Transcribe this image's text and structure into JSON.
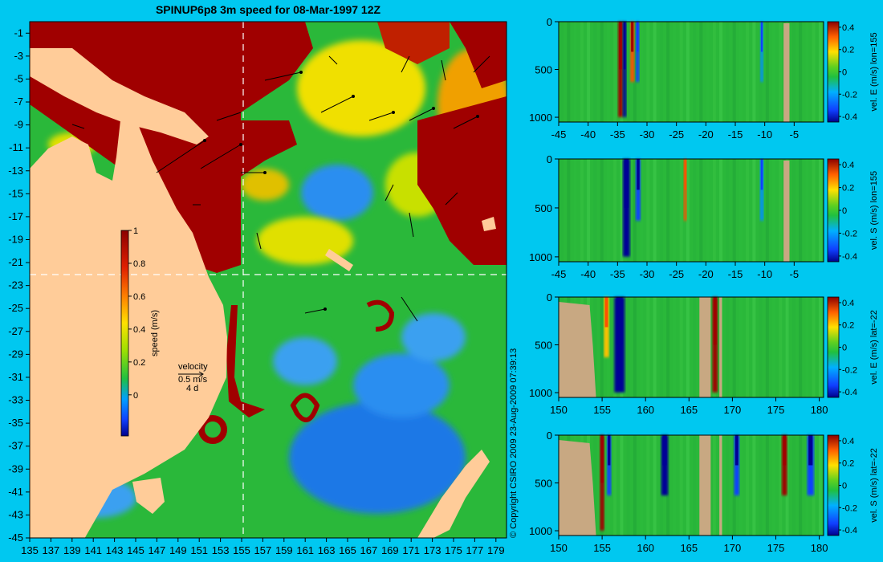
{
  "title": "SPINUP6p8 3m speed for 08-Mar-1997 12Z",
  "copyright": "© Copyright CSIRO 2009   23-Aug-2009 07:39:13",
  "colors": {
    "background": "#00c8f0",
    "land": "#ffcc99",
    "section_land": "#c8a882",
    "strong_current": "#a00000",
    "moderate_current": "#2ab83a",
    "weak_current": "#1e78e6"
  },
  "map": {
    "x_ticks": [
      "135",
      "137",
      "139",
      "141",
      "143",
      "145",
      "147",
      "149",
      "151",
      "153",
      "155",
      "157",
      "159",
      "161",
      "163",
      "165",
      "167",
      "169",
      "171",
      "173",
      "175",
      "177",
      "179"
    ],
    "y_ticks": [
      "-1",
      "-3",
      "-5",
      "-7",
      "-9",
      "-11",
      "-13",
      "-15",
      "-17",
      "-19",
      "-21",
      "-23",
      "-25",
      "-27",
      "-29",
      "-31",
      "-33",
      "-35",
      "-37",
      "-39",
      "-41",
      "-43",
      "-45"
    ],
    "colorbar": {
      "label": "speed (m/s)",
      "ticks": [
        "1",
        "0.8",
        "0.6",
        "0.4",
        "0.2",
        "0"
      ]
    },
    "velocity_key": {
      "label": "velocity",
      "speed": "0.5 m/s",
      "time": "4 d"
    }
  },
  "chart_data": [
    {
      "type": "heatmap",
      "title": "",
      "colorbar_label": "vel. E (m/s) lon=155",
      "x_ticks": [
        "-45",
        "-40",
        "-35",
        "-30",
        "-25",
        "-20",
        "-15",
        "-10",
        "-5"
      ],
      "y_ticks": [
        "0",
        "500",
        "1000"
      ],
      "colorbar_ticks": [
        "0.4",
        "0.2",
        "0",
        "-0.2",
        "-0.4"
      ],
      "xlim": [
        -45,
        0
      ],
      "ylim": [
        1050,
        0
      ],
      "clim": [
        -0.45,
        0.45
      ],
      "features": [
        {
          "x": -34.5,
          "width": 0.8,
          "value": 0.45
        },
        {
          "x": -33.8,
          "width": 0.6,
          "value": -0.4
        },
        {
          "x": -32.5,
          "width": 0.7,
          "value": 0.3
        },
        {
          "x": -31.6,
          "width": 0.6,
          "value": -0.25
        },
        {
          "x": -10.5,
          "width": 0.5,
          "value": -0.2
        }
      ],
      "land": [
        [
          -6.8,
          -5.8
        ]
      ]
    },
    {
      "type": "heatmap",
      "title": "",
      "colorbar_label": "vel. S (m/s) lon=155",
      "x_ticks": [
        "-45",
        "-40",
        "-35",
        "-30",
        "-25",
        "-20",
        "-15",
        "-10",
        "-5"
      ],
      "y_ticks": [
        "0",
        "500",
        "1000"
      ],
      "colorbar_ticks": [
        "0.4",
        "0.2",
        "0",
        "-0.2",
        "-0.4"
      ],
      "xlim": [
        -45,
        0
      ],
      "ylim": [
        1050,
        0
      ],
      "clim": [
        -0.45,
        0.45
      ],
      "features": [
        {
          "x": -33.5,
          "width": 1.2,
          "value": -0.42
        },
        {
          "x": -31.5,
          "width": 0.8,
          "value": -0.3
        },
        {
          "x": -23.5,
          "width": 0.5,
          "value": 0.25
        },
        {
          "x": -10.5,
          "width": 0.6,
          "value": -0.2
        }
      ],
      "land": [
        [
          -6.8,
          -5.8
        ]
      ]
    },
    {
      "type": "heatmap",
      "title": "",
      "colorbar_label": "vel. E (m/s) lat=-22",
      "x_ticks": [
        "150",
        "155",
        "160",
        "165",
        "170",
        "175",
        "180"
      ],
      "y_ticks": [
        "0",
        "500",
        "1000"
      ],
      "colorbar_ticks": [
        "0.4",
        "0.2",
        "0",
        "-0.2",
        "-0.4"
      ],
      "xlim": [
        150,
        180.5
      ],
      "ylim": [
        1050,
        0
      ],
      "clim": [
        -0.45,
        0.45
      ],
      "features": [
        {
          "x": 157,
          "width": 1.2,
          "value": -0.42
        },
        {
          "x": 168,
          "width": 0.6,
          "value": 0.45
        },
        {
          "x": 155.5,
          "width": 0.6,
          "value": 0.2
        }
      ],
      "land": [
        [
          150,
          154.3
        ],
        [
          166.2,
          167.5
        ],
        [
          168.5,
          168.8
        ]
      ]
    },
    {
      "type": "heatmap",
      "title": "",
      "colorbar_label": "vel. S (m/s) lat=-22",
      "x_ticks": [
        "150",
        "155",
        "160",
        "165",
        "170",
        "175",
        "180"
      ],
      "y_ticks": [
        "0",
        "500",
        "1000"
      ],
      "colorbar_ticks": [
        "0.4",
        "0.2",
        "0",
        "-0.2",
        "-0.4"
      ],
      "xlim": [
        150,
        180.5
      ],
      "ylim": [
        1050,
        0
      ],
      "clim": [
        -0.45,
        0.45
      ],
      "features": [
        {
          "x": 155,
          "width": 0.5,
          "value": 0.45
        },
        {
          "x": 155.8,
          "width": 0.5,
          "value": -0.3
        },
        {
          "x": 162.2,
          "width": 0.8,
          "value": -0.35
        },
        {
          "x": 170.5,
          "width": 0.6,
          "value": -0.3
        },
        {
          "x": 176,
          "width": 0.6,
          "value": 0.35
        },
        {
          "x": 179,
          "width": 0.8,
          "value": -0.3
        }
      ],
      "land": [
        [
          150,
          154.3
        ],
        [
          166.2,
          167.5
        ],
        [
          168.5,
          168.8
        ]
      ]
    }
  ]
}
